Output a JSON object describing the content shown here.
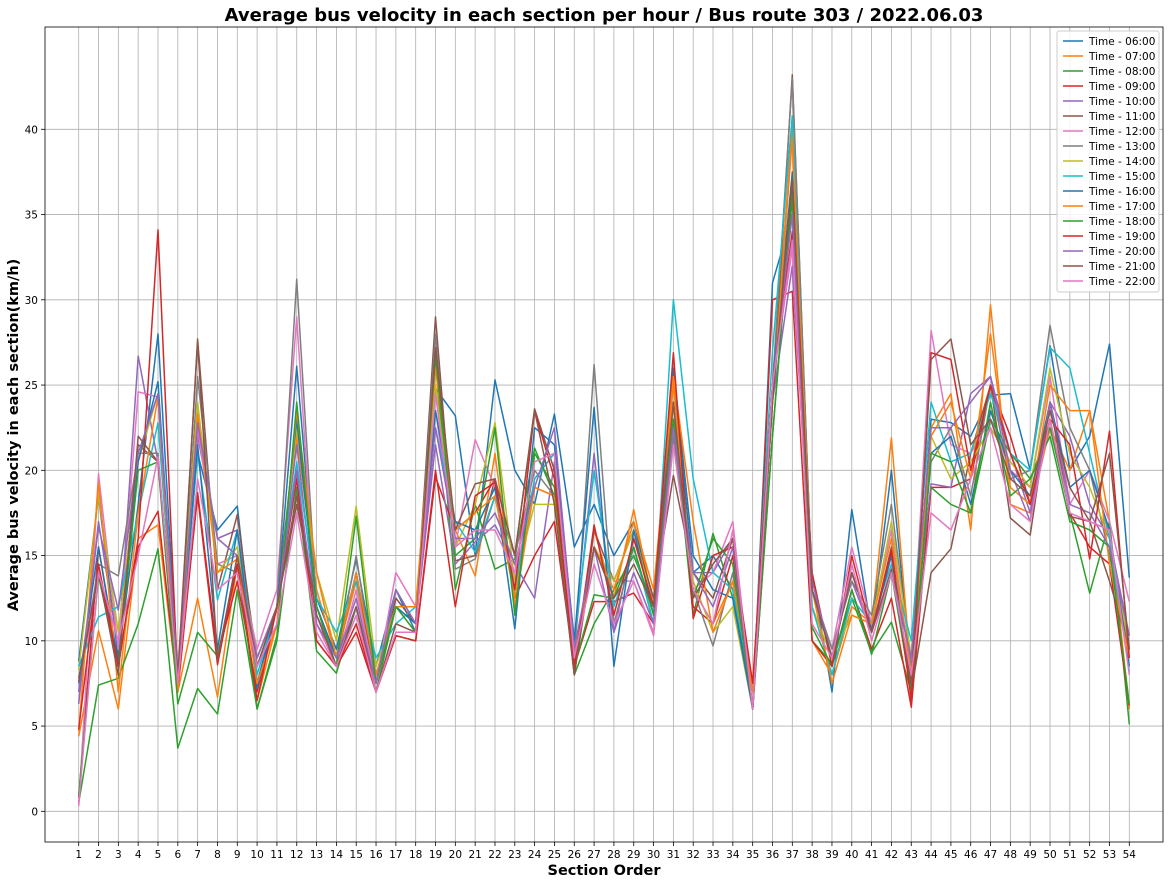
{
  "chart_data": {
    "type": "line",
    "title": "Average bus velocity in each section per hour / Bus route 303 / 2022.06.03",
    "xlabel": "Section Order",
    "ylabel": "Average bus velocity in each section(km/h)",
    "ylim": [
      -1.8,
      46
    ],
    "yticks": [
      0,
      5,
      10,
      15,
      20,
      25,
      30,
      35,
      40
    ],
    "grid": true,
    "legend_position": "top-right",
    "x": [
      1,
      2,
      3,
      4,
      5,
      6,
      7,
      8,
      9,
      10,
      11,
      12,
      13,
      14,
      15,
      16,
      17,
      18,
      19,
      20,
      21,
      22,
      23,
      24,
      25,
      26,
      27,
      28,
      29,
      30,
      31,
      32,
      33,
      34,
      35,
      36,
      37,
      38,
      39,
      40,
      41,
      42,
      43,
      44,
      45,
      46,
      47,
      48,
      49,
      50,
      51,
      52,
      53,
      54
    ],
    "series": [
      {
        "name": "Time - 06:00",
        "color": "#1f77b4",
        "values": [
          8.8,
          18.5,
          9,
          18,
          28,
          8,
          21,
          16.5,
          17.9,
          7.5,
          12,
          26.1,
          12.5,
          9.5,
          14.8,
          8.5,
          13,
          10.5,
          24.8,
          23.2,
          15,
          25.3,
          20,
          18,
          23.3,
          15.5,
          18,
          15,
          17,
          12,
          25.5,
          14,
          15,
          13,
          6,
          31,
          35,
          14,
          7,
          17.7,
          10.5,
          20,
          8,
          23,
          22.8,
          22,
          24.4,
          24.5,
          20,
          27.3,
          20,
          22,
          27.4,
          13.7
        ]
      },
      {
        "name": "Time - 07:00",
        "color": "#ff7f0e",
        "values": [
          4.4,
          10.6,
          6,
          16,
          16.8,
          7,
          12.5,
          6.7,
          14.5,
          6.5,
          11,
          22,
          13,
          9,
          13.5,
          7.5,
          12,
          10.5,
          25,
          16.5,
          13.8,
          21,
          12,
          19,
          18.5,
          8,
          16.5,
          12.5,
          17.7,
          12,
          25,
          13,
          11,
          13.5,
          7.5,
          25,
          40,
          10,
          8,
          12,
          11,
          21.9,
          8,
          22.5,
          24.5,
          16.5,
          29.7,
          18,
          17.5,
          22.5,
          20,
          23.5,
          17,
          6
        ]
      },
      {
        "name": "Time - 08:00",
        "color": "#2ca02c",
        "values": [
          0.5,
          7.4,
          7.8,
          11,
          15.4,
          3.7,
          7.2,
          5.7,
          13,
          6,
          10,
          19,
          9.4,
          8.1,
          12,
          7,
          12,
          11,
          26.5,
          13,
          18,
          14.2,
          14.8,
          21.3,
          18.5,
          8,
          11,
          13,
          15,
          12,
          23,
          11.5,
          16.3,
          12.5,
          6,
          22,
          36,
          10,
          8.7,
          12.5,
          9.3,
          11.1,
          7,
          19,
          18,
          17.5,
          23,
          21,
          19.5,
          22.5,
          17.5,
          12.8,
          17,
          5.1
        ]
      },
      {
        "name": "Time - 09:00",
        "color": "#d62728",
        "values": [
          0.8,
          15.5,
          8.5,
          15.5,
          17.6,
          7,
          18.7,
          9.1,
          13.5,
          7,
          12,
          19.5,
          10,
          8.5,
          11,
          7,
          10.3,
          10,
          19.6,
          16.5,
          17.5,
          19.5,
          12.5,
          15,
          17,
          8.5,
          12.3,
          12.3,
          12.8,
          11,
          24,
          12,
          11,
          15,
          6,
          30,
          30.5,
          10,
          8.5,
          13,
          9.5,
          12.5,
          6.1,
          19,
          19,
          19.5,
          25,
          22,
          18,
          23,
          17.5,
          15.5,
          14.5,
          6.2
        ]
      },
      {
        "name": "Time - 10:00",
        "color": "#9467bd",
        "values": [
          6.3,
          17,
          9.5,
          26.7,
          20.5,
          8,
          22,
          16,
          16.5,
          9,
          12,
          21.5,
          11.5,
          9,
          12.5,
          7.5,
          12.5,
          11,
          21.5,
          14.5,
          15.8,
          16.8,
          14.5,
          12.5,
          20.5,
          9.5,
          21,
          10.5,
          16,
          12.5,
          23,
          14,
          14,
          16,
          6,
          24,
          32,
          13,
          9.5,
          13.5,
          10.5,
          14,
          9,
          19.2,
          19,
          24.5,
          25.5,
          21,
          17.5,
          24,
          22,
          18,
          16,
          10.3
        ]
      },
      {
        "name": "Time - 11:00",
        "color": "#8c564b",
        "values": [
          7.8,
          14,
          9,
          21.5,
          20.5,
          7.5,
          27.7,
          13,
          17.4,
          8.5,
          12,
          18,
          12,
          9,
          14,
          7.5,
          12.5,
          11,
          29,
          14.7,
          15,
          19.5,
          15,
          23.6,
          20,
          8,
          16.5,
          13.5,
          16.5,
          12.5,
          19.7,
          14,
          12.5,
          16,
          6,
          24,
          43.2,
          13,
          9,
          14,
          10.5,
          15.5,
          7,
          14,
          15.4,
          21,
          25,
          17.2,
          16.2,
          24,
          17.3,
          17,
          13.5,
          9.5
        ]
      },
      {
        "name": "Time - 12:00",
        "color": "#e377c2",
        "values": [
          0.3,
          19.8,
          9.5,
          24.6,
          24.3,
          7,
          22.5,
          14.5,
          15,
          9.5,
          13,
          29,
          11,
          8.5,
          13,
          7.5,
          14,
          12,
          23.5,
          15.5,
          21.8,
          19,
          13.5,
          19.5,
          21,
          9,
          15.5,
          13.5,
          13.5,
          10.3,
          22,
          13,
          14,
          17,
          6,
          25,
          33,
          13,
          9.5,
          15.5,
          11,
          16.5,
          8,
          28.2,
          21.5,
          21,
          23,
          20,
          19,
          25.5,
          18,
          20,
          17,
          12.3
        ]
      },
      {
        "name": "Time - 13:00",
        "color": "#7f7f7f",
        "values": [
          7,
          14.5,
          13.8,
          21,
          21,
          7,
          25.5,
          14.5,
          14,
          9,
          12,
          31.2,
          12,
          9,
          15,
          7.5,
          13,
          11,
          28,
          14.2,
          14.8,
          18.5,
          15,
          20,
          18.5,
          9,
          26.2,
          11,
          15.5,
          11,
          22,
          13,
          9.7,
          14,
          6,
          25,
          43,
          13,
          9.5,
          13.5,
          11.5,
          18,
          8.5,
          20.5,
          22.5,
          18.5,
          25,
          19.5,
          20,
          28.5,
          22.5,
          20,
          15,
          9.5
        ]
      },
      {
        "name": "Time - 14:00",
        "color": "#bcbd22",
        "values": [
          8.3,
          18.5,
          10.5,
          20.5,
          24.5,
          7.5,
          24,
          14,
          15.5,
          9,
          12,
          22.5,
          14,
          10,
          17.9,
          8.5,
          12,
          12,
          25,
          15.5,
          18,
          22.8,
          13.5,
          18,
          18,
          9.5,
          15.5,
          13.5,
          16.5,
          12,
          24,
          13.5,
          10.5,
          12,
          6,
          24,
          37,
          12,
          9,
          11.5,
          11,
          17,
          9,
          22,
          19.5,
          20.5,
          22.5,
          20.5,
          19,
          26,
          21,
          19,
          16,
          9.6
        ]
      },
      {
        "name": "Time - 15:00",
        "color": "#17becf",
        "values": [
          8.5,
          11.4,
          12,
          17.5,
          22.8,
          7.5,
          21,
          12.4,
          16.5,
          8,
          12,
          20.5,
          12.5,
          10.5,
          13.5,
          9,
          11,
          12,
          22.5,
          17,
          15.2,
          18.5,
          13,
          19.5,
          21,
          10,
          20,
          12,
          15.5,
          11,
          30,
          19.5,
          14,
          13,
          7,
          27,
          40.8,
          12,
          8,
          12.5,
          11,
          14.5,
          10,
          24,
          20.5,
          21,
          24.5,
          21,
          20,
          27.2,
          26,
          21,
          16,
          8.2
        ]
      },
      {
        "name": "Time - 16:00",
        "color": "#1f77b4",
        "values": [
          7.5,
          15.5,
          8.7,
          20.5,
          25.2,
          7.5,
          21.5,
          9.5,
          16.5,
          7.2,
          12,
          23,
          12,
          9,
          14,
          8,
          12,
          11,
          23.5,
          17,
          16.5,
          19,
          10.7,
          22.5,
          21.5,
          10,
          23.7,
          8.5,
          16.5,
          11.5,
          26,
          15,
          13,
          12.5,
          6,
          25,
          37.5,
          13,
          9,
          14,
          10.5,
          15,
          7,
          21,
          22,
          18,
          23.5,
          20,
          18.5,
          24,
          19,
          20,
          16.5,
          8.5
        ]
      },
      {
        "name": "Time - 17:00",
        "color": "#ff7f0e",
        "values": [
          4.7,
          19.3,
          7,
          17.5,
          24.3,
          7,
          23.3,
          14,
          14.8,
          7.5,
          11,
          23.5,
          14,
          9,
          14,
          8,
          12,
          12,
          26,
          16.5,
          17.5,
          18.5,
          12.5,
          19,
          18.5,
          9,
          15.5,
          13,
          17,
          13,
          25.5,
          17,
          10.5,
          13.5,
          7,
          24,
          39.5,
          13,
          7.5,
          11.5,
          11,
          16,
          8,
          22,
          24,
          19.5,
          28,
          19,
          18,
          25,
          23.5,
          23.5,
          14.5,
          9
        ]
      },
      {
        "name": "Time - 18:00",
        "color": "#2ca02c",
        "values": [
          0.9,
          13.8,
          8.5,
          20,
          20.5,
          6.3,
          10.5,
          9.1,
          14.5,
          6,
          10.3,
          24,
          12,
          8.5,
          17.3,
          7.5,
          12,
          10.5,
          26.8,
          15,
          16,
          22.5,
          11.5,
          21,
          19,
          8.5,
          12.7,
          12.5,
          15.5,
          11.5,
          23,
          12.5,
          16,
          14.5,
          6,
          22,
          36.5,
          10.8,
          8.5,
          13,
          9.2,
          14,
          7,
          21,
          20.5,
          17.5,
          24,
          18.5,
          19.5,
          22,
          17,
          16.5,
          15.5,
          6.3
        ]
      },
      {
        "name": "Time - 19:00",
        "color": "#d62728",
        "values": [
          4.8,
          14.5,
          8.5,
          16,
          34.1,
          7.5,
          18.5,
          8.6,
          14.5,
          6.5,
          12,
          20,
          10,
          8.5,
          10.5,
          7,
          10.3,
          10,
          20,
          12,
          18.5,
          19.3,
          13,
          23.5,
          19.5,
          8.5,
          16.8,
          11.5,
          16,
          12,
          26.9,
          11.3,
          15,
          15.5,
          7.5,
          25,
          34,
          14,
          8.5,
          15,
          10.5,
          15.3,
          6.5,
          26.9,
          26.5,
          20,
          25,
          21,
          18,
          23,
          21.5,
          14.8,
          22.3,
          9
        ]
      },
      {
        "name": "Time - 20:00",
        "color": "#9467bd",
        "values": [
          7,
          16.7,
          11.8,
          21,
          24.5,
          8,
          22.8,
          16,
          15,
          9,
          12,
          20,
          11,
          9,
          12,
          7.5,
          13,
          11,
          22.5,
          16,
          16,
          17.5,
          14.5,
          19,
          22.5,
          9.5,
          15.5,
          10.5,
          14,
          11,
          22.5,
          14,
          12,
          15.5,
          6,
          25,
          35,
          13.5,
          9,
          14,
          10.5,
          14,
          9,
          22.5,
          22.5,
          24,
          25.5,
          20,
          17,
          24,
          18,
          17.5,
          15.5,
          10.3
        ]
      },
      {
        "name": "Time - 21:00",
        "color": "#8c564b",
        "values": [
          7.6,
          14,
          8,
          22,
          20.5,
          8,
          27.5,
          8.9,
          15,
          8.5,
          12,
          18.5,
          11.5,
          8.5,
          12,
          7,
          11,
          10.5,
          27.2,
          16.5,
          19.2,
          19.5,
          15,
          23.5,
          18,
          8,
          15.5,
          12.5,
          14.5,
          12,
          24,
          12.5,
          14.5,
          16,
          6,
          24,
          37,
          13,
          9,
          14,
          10.5,
          14.2,
          7.5,
          26.5,
          27.7,
          21.5,
          23,
          19.5,
          18.5,
          23.5,
          19,
          17,
          21,
          9.5
        ]
      },
      {
        "name": "Time - 22:00",
        "color": "#e377c2",
        "values": [
          0.4,
          14,
          10,
          15,
          20.8,
          7.5,
          19.5,
          13,
          14,
          8.5,
          11,
          17.5,
          10.5,
          8.5,
          11.5,
          7,
          10.5,
          10.5,
          24.5,
          15.5,
          16.5,
          16.5,
          14,
          20.5,
          21,
          9,
          14.5,
          11,
          13.5,
          10.5,
          21.5,
          13,
          11,
          16.5,
          6,
          25,
          33.5,
          11,
          9,
          14.5,
          10,
          14,
          8,
          17.5,
          16.5,
          19.5,
          22.5,
          18,
          17,
          23,
          17.5,
          17,
          16.5,
          8
        ]
      }
    ]
  }
}
